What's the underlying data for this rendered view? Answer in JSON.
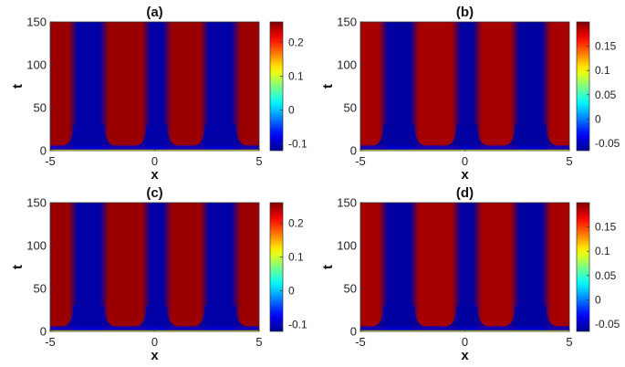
{
  "chart_data": [
    {
      "type": "heatmap",
      "title": "(a)",
      "xlabel": "x",
      "ylabel": "t",
      "xlim": [
        -5,
        5
      ],
      "ylim": [
        0,
        150
      ],
      "xticks": [
        "-5",
        "0",
        "5"
      ],
      "yticks": [
        "0",
        "50",
        "100",
        "150"
      ],
      "colormap": "jet",
      "colorbar": {
        "range": [
          -0.12,
          0.26
        ],
        "ticks": [
          "0.2",
          "0.1",
          "0",
          "-0.1"
        ],
        "tick_values": [
          0.2,
          0.1,
          0,
          -0.1
        ]
      },
      "pattern": {
        "stripes_x": [
          -3.9,
          -2.4,
          -0.4,
          0.6,
          2.4,
          3.9
        ],
        "low_value": -0.11,
        "high_value": 0.25,
        "transient_end_t": 6
      }
    },
    {
      "type": "heatmap",
      "title": "(b)",
      "xlabel": "x",
      "ylabel": "t",
      "xlim": [
        -5,
        5
      ],
      "ylim": [
        0,
        150
      ],
      "xticks": [
        "-5",
        "0",
        "5"
      ],
      "yticks": [
        "0",
        "50",
        "100",
        "150"
      ],
      "colormap": "jet",
      "colorbar": {
        "range": [
          -0.065,
          0.2
        ],
        "ticks": [
          "0.15",
          "0.1",
          "0.05",
          "0",
          "-0.05"
        ],
        "tick_values": [
          0.15,
          0.1,
          0.05,
          0,
          -0.05
        ]
      },
      "pattern": {
        "stripes_x": [
          -3.9,
          -2.4,
          -0.4,
          0.6,
          2.4,
          3.9
        ],
        "low_value": -0.06,
        "high_value": 0.19,
        "transient_end_t": 6
      }
    },
    {
      "type": "heatmap",
      "title": "(c)",
      "xlabel": "x",
      "ylabel": "t",
      "xlim": [
        -5,
        5
      ],
      "ylim": [
        0,
        150
      ],
      "xticks": [
        "-5",
        "0",
        "5"
      ],
      "yticks": [
        "0",
        "50",
        "100",
        "150"
      ],
      "colormap": "jet",
      "colorbar": {
        "range": [
          -0.12,
          0.26
        ],
        "ticks": [
          "0.2",
          "0.1",
          "0",
          "-0.1"
        ],
        "tick_values": [
          0.2,
          0.1,
          0,
          -0.1
        ]
      },
      "pattern": {
        "stripes_x": [
          -3.9,
          -2.4,
          -0.4,
          0.6,
          2.4,
          3.9
        ],
        "low_value": -0.11,
        "high_value": 0.25,
        "transient_end_t": 6
      }
    },
    {
      "type": "heatmap",
      "title": "(d)",
      "xlabel": "x",
      "ylabel": "t",
      "xlim": [
        -5,
        5
      ],
      "ylim": [
        0,
        150
      ],
      "xticks": [
        "-5",
        "0",
        "5"
      ],
      "yticks": [
        "0",
        "50",
        "100",
        "150"
      ],
      "colormap": "jet",
      "colorbar": {
        "range": [
          -0.065,
          0.2
        ],
        "ticks": [
          "0.15",
          "0.1",
          "0.05",
          "0",
          "-0.05"
        ],
        "tick_values": [
          0.15,
          0.1,
          0.05,
          0,
          -0.05
        ]
      },
      "pattern": {
        "stripes_x": [
          -3.9,
          -2.4,
          -0.4,
          0.6,
          2.4,
          3.9
        ],
        "low_value": -0.06,
        "high_value": 0.19,
        "transient_end_t": 6
      }
    }
  ]
}
